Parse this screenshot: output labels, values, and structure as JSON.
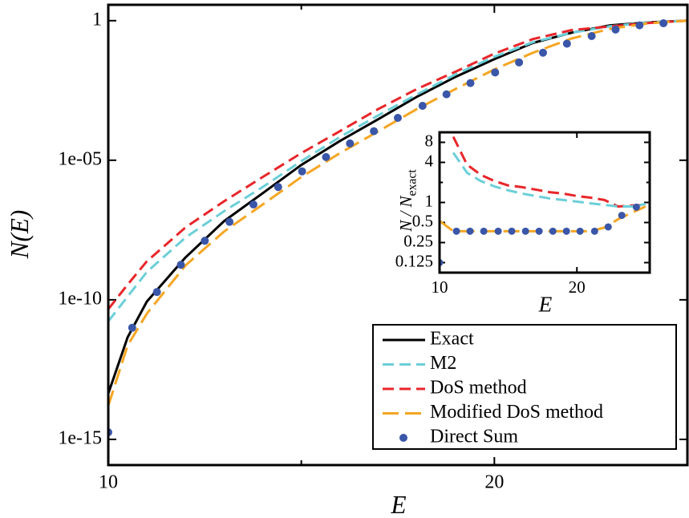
{
  "chart_data": [
    {
      "type": "line",
      "ylabel": "N(E)",
      "xlabel": "E",
      "yscale": "log",
      "xlim": [
        10,
        25
      ],
      "ylim": [
        1.2e-16,
        3.7
      ],
      "xticks": [
        10,
        20
      ],
      "xminorticks": [
        15
      ],
      "yticks": [
        1,
        {
          "value": 1e-05,
          "label": "1e-05"
        },
        {
          "value": 1e-10,
          "label": "1e-10"
        },
        {
          "value": 1e-15,
          "label": "1e-15"
        }
      ],
      "legend": "lower right",
      "x": [
        10,
        10.5,
        11,
        12,
        13,
        14,
        15,
        16,
        17,
        18,
        19,
        20,
        21,
        22,
        23,
        24,
        25
      ],
      "series": [
        {
          "name": "Exact",
          "color": "#000000",
          "style": "solid",
          "values": [
            4.4e-14,
            4.5e-12,
            8.7e-11,
            3.3e-09,
            6.6e-08,
            6.6e-07,
            6.8e-06,
            4.9e-05,
            0.0003,
            0.0019,
            0.0098,
            0.042,
            0.16,
            0.37,
            0.68,
            0.87,
            1
          ]
        },
        {
          "name": "M2",
          "color": "#6ccfd8",
          "style": "dashed",
          "values": [
            1.7e-11,
            1.3e-10,
            1e-09,
            1.7e-08,
            1.5e-07,
            1.1e-06,
            9.3e-06,
            6.8e-05,
            0.00041,
            0.0023,
            0.012,
            0.051,
            0.17,
            0.37,
            0.63,
            0.87,
            1
          ]
        },
        {
          "name": "DoS method",
          "color": "#e8262a",
          "style": "dashed",
          "values": [
            4.6e-11,
            3.5e-10,
            2.4e-09,
            3.9e-08,
            3.4e-07,
            2.5e-06,
            1.8e-05,
            0.00011,
            0.00069,
            0.0036,
            0.015,
            0.066,
            0.22,
            0.46,
            0.62,
            0.83,
            1
          ]
        },
        {
          "name": "Modified DoS method",
          "color": "#f5a623",
          "style": "longdash",
          "values": [
            1.6e-14,
            2.3e-12,
            3.2e-11,
            1.7e-09,
            2.8e-08,
            2.6e-07,
            2.5e-06,
            1.8e-05,
            0.00011,
            0.00069,
            0.0036,
            0.018,
            0.071,
            0.23,
            0.51,
            0.81,
            1
          ]
        },
        {
          "name": "Direct Sum",
          "color": "#3a56a8",
          "style": "markers",
          "x": [
            10,
            10.62,
            11.26,
            11.88,
            12.5,
            13.14,
            13.76,
            14.4,
            15.02,
            15.64,
            16.26,
            16.88,
            17.5,
            18.14,
            18.76,
            19.38,
            20.02,
            20.64,
            21.26,
            21.88,
            22.52,
            23.14,
            23.76,
            24.38
          ],
          "values": [
            1.8e-15,
            1e-11,
            1.9e-10,
            1.8e-09,
            1.3e-08,
            6.2e-08,
            2.6e-07,
            1.1e-06,
            4e-06,
            1.3e-05,
            4e-05,
            0.00011,
            0.00033,
            0.00089,
            0.0023,
            0.0058,
            0.014,
            0.032,
            0.071,
            0.15,
            0.28,
            0.48,
            0.68,
            0.81
          ]
        }
      ]
    },
    {
      "type": "line",
      "ylabel": {
        "main": "N / N",
        "sub": "exact"
      },
      "xlabel": "E",
      "yscale": "log",
      "xlim": [
        10,
        25.3
      ],
      "ylim": [
        0.0884,
        11.31
      ],
      "xticks": [
        10,
        20
      ],
      "yticks": [
        8,
        4,
        1,
        0.5,
        0.25,
        0.125
      ],
      "yminorticks": [
        2
      ],
      "x": [
        10,
        11,
        12,
        13,
        14,
        15,
        16,
        17,
        18,
        19,
        20,
        21,
        22,
        23,
        24,
        25
      ],
      "series": [
        {
          "color": "#e8262a",
          "style": "dashed",
          "values": [
            null,
            9.7,
            3.7,
            2.6,
            2.1,
            1.8,
            1.7,
            1.56,
            1.43,
            1.36,
            1.25,
            1.18,
            1.09,
            0.87,
            0.9,
            0.92
          ]
        },
        {
          "color": "#6ccfd8",
          "style": "dashed",
          "values": [
            null,
            5.6,
            2.8,
            2.1,
            1.74,
            1.52,
            1.36,
            1.25,
            1.15,
            1.09,
            1.03,
            0.97,
            0.92,
            0.87,
            0.87,
            0.95
          ]
        },
        {
          "color": "#f5a623",
          "style": "longdash",
          "values": [
            0.53,
            0.37,
            0.37,
            0.37,
            0.37,
            0.37,
            0.37,
            0.37,
            0.37,
            0.37,
            0.37,
            0.37,
            0.42,
            0.56,
            0.7,
            0.87
          ]
        },
        {
          "color": "#3a56a8",
          "style": "markers",
          "x": [
            10,
            11.23,
            12.22,
            13.22,
            14.27,
            15.26,
            16.26,
            17.25,
            18.25,
            19.24,
            20.23,
            21.29,
            22.28,
            23.27,
            24.33
          ],
          "values": [
            0.125,
            0.37,
            0.37,
            0.37,
            0.37,
            0.37,
            0.37,
            0.37,
            0.37,
            0.37,
            0.37,
            0.37,
            0.43,
            0.64,
            0.85
          ]
        }
      ]
    }
  ]
}
